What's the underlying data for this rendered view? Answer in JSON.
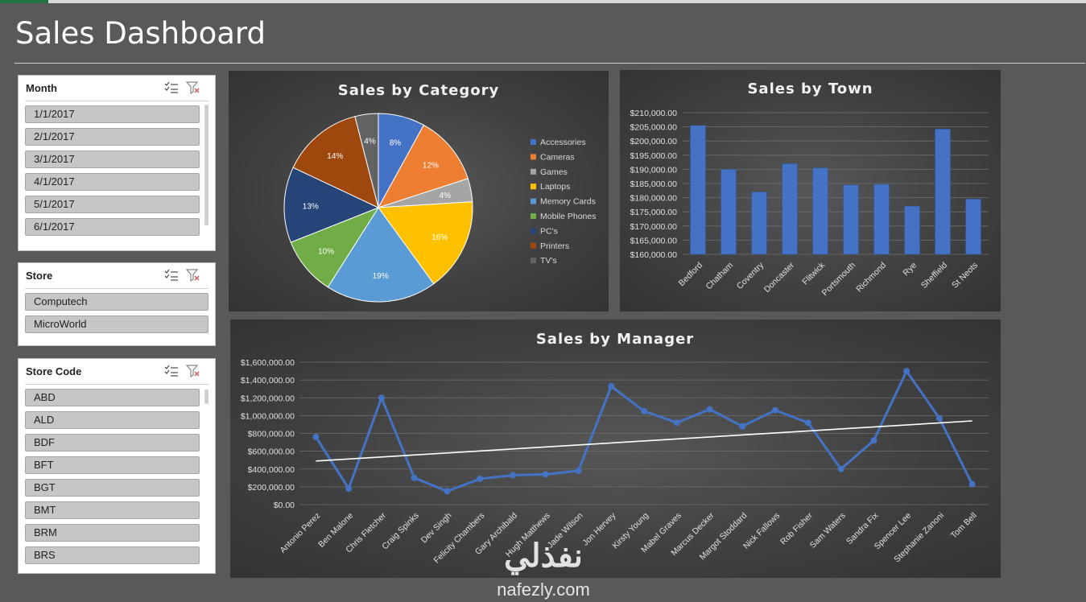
{
  "dashboard": {
    "title": "Sales Dashboard"
  },
  "slicers": {
    "month": {
      "label": "Month",
      "items": [
        "1/1/2017",
        "2/1/2017",
        "3/1/2017",
        "4/1/2017",
        "5/1/2017",
        "6/1/2017"
      ]
    },
    "store": {
      "label": "Store",
      "items": [
        "Computech",
        "MicroWorld"
      ]
    },
    "store_code": {
      "label": "Store Code",
      "items": [
        "ABD",
        "ALD",
        "BDF",
        "BFT",
        "BGT",
        "BMT",
        "BRM",
        "BRS"
      ]
    }
  },
  "colors": {
    "line": "#4472c4",
    "bar": "#4472c4",
    "trend": "#ffffff"
  },
  "chart_data": [
    {
      "type": "pie",
      "title": "Sales by Category",
      "categories": [
        "Accessories",
        "Cameras",
        "Games",
        "Laptops",
        "Memory Cards",
        "Mobile Phones",
        "PC's",
        "Printers",
        "TV's"
      ],
      "values": [
        8,
        12,
        4,
        16,
        19,
        10,
        13,
        14,
        4
      ],
      "labels": [
        "8%",
        "12%",
        "4%",
        "16%",
        "19%",
        "10%",
        "13%",
        "14%",
        "4%"
      ],
      "colors": [
        "#4472c4",
        "#ed7d31",
        "#a5a5a5",
        "#ffc000",
        "#5b9bd5",
        "#70ad47",
        "#264478",
        "#9e480e",
        "#636363"
      ],
      "legend": "right"
    },
    {
      "type": "bar",
      "title": "Sales by Town",
      "categories": [
        "Bedford",
        "Chatham",
        "Coventry",
        "Doncaster",
        "Flitwick",
        "Portsmouth",
        "Richmond",
        "Rye",
        "Sheffield",
        "St Neots"
      ],
      "values": [
        205500,
        190000,
        182000,
        192000,
        190500,
        184500,
        184700,
        177000,
        204200,
        179500
      ],
      "ylim": [
        160000,
        210000
      ],
      "yticks": [
        "$160,000.00",
        "$165,000.00",
        "$170,000.00",
        "$175,000.00",
        "$180,000.00",
        "$185,000.00",
        "$190,000.00",
        "$195,000.00",
        "$200,000.00",
        "$205,000.00",
        "$210,000.00"
      ],
      "grid": true
    },
    {
      "type": "line",
      "title": "Sales by Manager",
      "categories": [
        "Antonio Perez",
        "Ben Malone",
        "Chris Fletcher",
        "Craig Spinks",
        "Dev Singh",
        "Felicity Chambers",
        "Gary Archibald",
        "Hugh Matthews",
        "Jade Wilson",
        "Jon Hervey",
        "Kirsty Young",
        "Mabel Graves",
        "Marcus Decker",
        "Margot Stoddard",
        "Nick Fallows",
        "Rob Fisher",
        "Sam Waters",
        "Sandra Fix",
        "Spencer Lee",
        "Stephanie Zanoni",
        "Tom Bell"
      ],
      "values": [
        760000,
        180000,
        1200000,
        300000,
        150000,
        290000,
        330000,
        340000,
        380000,
        1330000,
        1050000,
        920000,
        1070000,
        880000,
        1060000,
        920000,
        400000,
        720000,
        1500000,
        970000,
        230000
      ],
      "trendline": [
        490000,
        940000
      ],
      "ylim": [
        0,
        1600000
      ],
      "yticks": [
        "$0.00",
        "$200,000.00",
        "$400,000.00",
        "$600,000.00",
        "$800,000.00",
        "$1,000,000.00",
        "$1,200,000.00",
        "$1,400,000.00",
        "$1,600,000.00"
      ],
      "grid": true
    }
  ],
  "watermark": {
    "brand": "nafezly.com",
    "arabic": "نفذلي"
  }
}
